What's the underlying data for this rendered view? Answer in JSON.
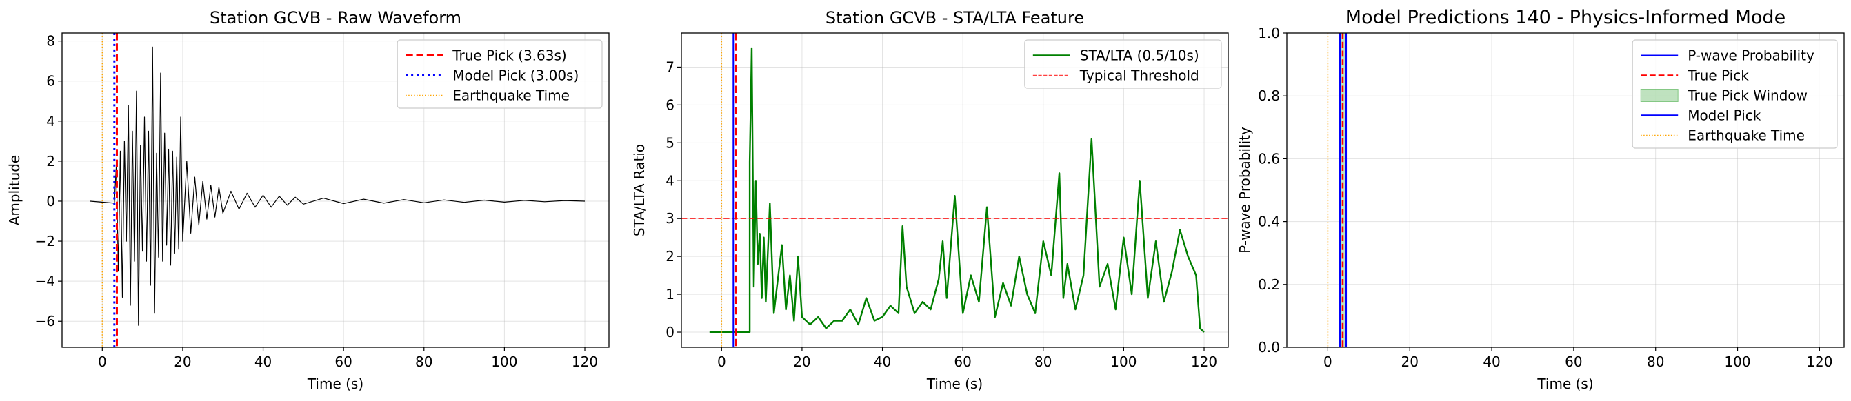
{
  "chart_data": [
    {
      "type": "line",
      "title": "Station GCVB - Raw Waveform",
      "xlabel": "Time (s)",
      "ylabel": "Amplitude",
      "xlim": [
        -10,
        126
      ],
      "ylim": [
        -7.3,
        8.4
      ],
      "xticks": [
        0,
        20,
        40,
        60,
        80,
        100,
        120
      ],
      "yticks": [
        -6,
        -4,
        -2,
        0,
        2,
        4,
        6,
        8
      ],
      "grid": true,
      "legend_position": "top-right",
      "series": [
        {
          "name": "Waveform",
          "color": "#000000",
          "kind": "waveform",
          "x": [
            -3,
            3,
            3.5,
            4,
            4.5,
            5,
            5.5,
            6,
            6.5,
            7,
            7.5,
            8,
            8.5,
            9,
            9.5,
            10,
            10.5,
            11,
            11.5,
            12,
            12.5,
            13,
            13.5,
            14,
            14.5,
            15,
            15.5,
            16,
            16.5,
            17,
            17.5,
            18,
            18.5,
            19,
            19.5,
            20,
            21,
            22,
            23,
            24,
            25,
            26,
            27,
            28,
            29,
            30,
            32,
            34,
            36,
            38,
            40,
            42,
            44,
            46,
            48,
            50,
            55,
            60,
            65,
            70,
            75,
            80,
            85,
            90,
            95,
            100,
            105,
            110,
            115,
            120
          ],
          "y": [
            0.0,
            -0.1,
            1.8,
            -3.5,
            2.5,
            -4.8,
            3.0,
            -2.0,
            4.8,
            -5.2,
            3.5,
            -3.0,
            5.5,
            -6.2,
            2.8,
            -2.5,
            4.2,
            -3.0,
            3.5,
            -4.2,
            7.7,
            -5.6,
            2.4,
            -2.8,
            6.4,
            -3.0,
            3.4,
            -2.2,
            2.6,
            -3.2,
            2.5,
            -2.6,
            2.2,
            -2.4,
            4.2,
            -2.0,
            2.0,
            -1.6,
            1.2,
            -1.2,
            1.0,
            -0.9,
            0.8,
            -0.8,
            0.7,
            -0.6,
            0.5,
            -0.4,
            0.4,
            -0.3,
            0.3,
            -0.3,
            0.25,
            -0.2,
            0.2,
            -0.15,
            0.15,
            -0.12,
            0.1,
            -0.1,
            0.08,
            -0.08,
            0.06,
            -0.06,
            0.05,
            -0.05,
            0.04,
            -0.03,
            0.03,
            0.0
          ]
        },
        {
          "name": "True Pick (3.63s)",
          "kind": "vline",
          "x": 3.63,
          "color": "#ff0000",
          "dash": "dashed",
          "width": 3
        },
        {
          "name": "Model Pick (3.00s)",
          "kind": "vline",
          "x": 3.0,
          "color": "#0000ff",
          "dash": "dotted",
          "width": 3
        },
        {
          "name": "Earthquake Time",
          "kind": "vline",
          "x": 0,
          "color": "#ffa500",
          "dash": "dotted",
          "width": 1.5
        }
      ],
      "legend": [
        "True Pick (3.63s)",
        "Model Pick (3.00s)",
        "Earthquake Time"
      ]
    },
    {
      "type": "line",
      "title": "Station GCVB - STA/LTA Feature",
      "xlabel": "Time (s)",
      "ylabel": "STA/LTA Ratio",
      "xlim": [
        -10,
        126
      ],
      "ylim": [
        -0.4,
        7.9
      ],
      "xticks": [
        0,
        20,
        40,
        60,
        80,
        100,
        120
      ],
      "yticks": [
        0,
        1,
        2,
        3,
        4,
        5,
        6,
        7
      ],
      "grid": true,
      "legend_position": "top-right",
      "series": [
        {
          "name": "STA/LTA (0.5/10s)",
          "color": "#008000",
          "kind": "line",
          "x": [
            -3,
            7,
            7,
            7.5,
            8,
            8.5,
            9,
            9.5,
            10,
            10.5,
            11,
            12,
            13,
            14,
            15,
            16,
            17,
            18,
            19,
            20,
            22,
            24,
            26,
            28,
            30,
            32,
            34,
            36,
            38,
            40,
            42,
            44,
            45,
            46,
            48,
            50,
            52,
            54,
            55,
            56,
            58,
            60,
            62,
            64,
            66,
            68,
            70,
            72,
            74,
            76,
            78,
            80,
            82,
            84,
            85,
            86,
            88,
            90,
            92,
            94,
            96,
            98,
            100,
            102,
            104,
            106,
            108,
            110,
            112,
            114,
            116,
            118,
            119,
            120
          ],
          "y": [
            0.0,
            0.0,
            4.5,
            7.5,
            1.2,
            4.0,
            1.8,
            2.6,
            0.9,
            2.5,
            0.8,
            3.4,
            0.5,
            1.4,
            2.3,
            0.6,
            1.5,
            0.3,
            2.0,
            0.4,
            0.2,
            0.4,
            0.1,
            0.3,
            0.3,
            0.6,
            0.2,
            0.9,
            0.3,
            0.4,
            0.7,
            0.5,
            2.8,
            1.2,
            0.5,
            0.8,
            0.6,
            1.4,
            2.4,
            0.9,
            3.6,
            0.5,
            1.5,
            0.8,
            3.3,
            0.4,
            1.3,
            0.7,
            2.0,
            1.0,
            0.5,
            2.4,
            1.5,
            4.2,
            0.9,
            1.8,
            0.6,
            1.5,
            5.1,
            1.2,
            1.8,
            0.6,
            2.5,
            1.0,
            4.0,
            0.9,
            2.4,
            0.8,
            1.6,
            2.7,
            2.0,
            1.5,
            0.1,
            0.0
          ]
        },
        {
          "name": "Typical Threshold",
          "kind": "hline",
          "y": 3,
          "color": "#ff0000",
          "dash": "dashed",
          "width": 1.5,
          "opacity": 0.75
        },
        {
          "name": "True Pick",
          "kind": "vline",
          "x": 3.63,
          "color": "#ff0000",
          "dash": "dashed",
          "width": 3
        },
        {
          "name": "Model Pick",
          "kind": "vline",
          "x": 3.0,
          "color": "#0000ff",
          "dash": "solid",
          "width": 3
        },
        {
          "name": "Earthquake Time",
          "kind": "vline",
          "x": 0,
          "color": "#ffa500",
          "dash": "dotted",
          "width": 1.5
        }
      ],
      "legend": [
        "STA/LTA (0.5/10s)",
        "Typical Threshold"
      ]
    },
    {
      "type": "line",
      "title": "Model Predictions 140 - Physics-Informed Mode",
      "xlabel": "Time (s)",
      "ylabel": "P-wave Probability",
      "xlim": [
        -10,
        126
      ],
      "ylim": [
        0,
        1.0
      ],
      "xticks": [
        0,
        20,
        40,
        60,
        80,
        100,
        120
      ],
      "yticks": [
        0.0,
        0.2,
        0.4,
        0.6,
        0.8,
        1.0
      ],
      "grid": true,
      "legend_position": "top-right",
      "series": [
        {
          "name": "P-wave Probability",
          "color": "#0000ff",
          "kind": "line",
          "x": [
            -3,
            120
          ],
          "y": [
            0,
            0
          ],
          "width": 2
        },
        {
          "name": "True Pick",
          "kind": "vline",
          "x": 3.63,
          "color": "#ff0000",
          "dash": "dashed",
          "width": 2.5
        },
        {
          "name": "True Pick Window",
          "kind": "band",
          "x0": 2.9,
          "x1": 4.4,
          "color": "#2ca02c",
          "opacity": 0.3
        },
        {
          "name": "Model Pick",
          "kind": "vline",
          "x": 3.0,
          "color": "#0000ff",
          "dash": "solid",
          "width": 2.5
        },
        {
          "name": "Model Pick",
          "kind": "vline",
          "x": 4.4,
          "color": "#0000ff",
          "dash": "solid",
          "width": 3,
          "nolegend": true
        },
        {
          "name": "Earthquake Time",
          "kind": "vline",
          "x": 0,
          "color": "#ffa500",
          "dash": "dotted",
          "width": 1.5
        }
      ],
      "legend": [
        "P-wave Probability",
        "True Pick",
        "True Pick Window",
        "Model Pick",
        "Earthquake Time"
      ]
    }
  ]
}
